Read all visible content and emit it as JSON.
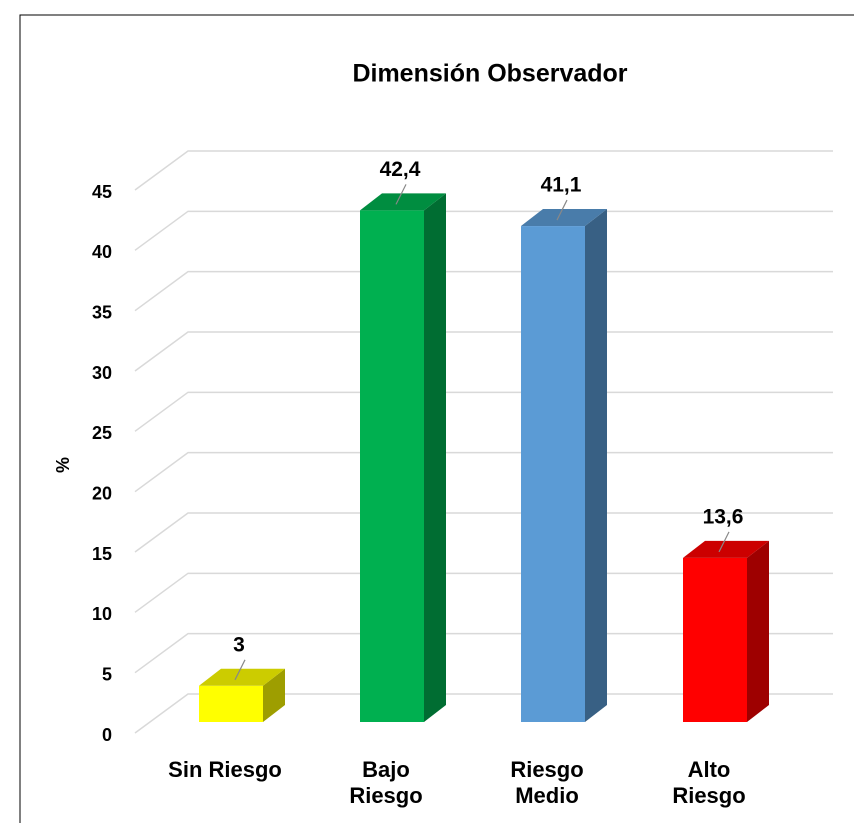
{
  "chart_data": {
    "type": "bar3d",
    "title": "Dimensión Observador",
    "y_label": "%",
    "categories": [
      "Sin Riesgo",
      "Bajo\nRiesgo",
      "Riesgo\nMedio",
      "Alto\nRiesgo"
    ],
    "values": [
      3,
      42.4,
      41.1,
      13.6
    ],
    "value_labels": [
      "3",
      "42,4",
      "41,1",
      "13,6"
    ],
    "colors": [
      "#ffff00",
      "#00b050",
      "#5b9bd5",
      "#ff0000"
    ],
    "ylim": [
      0,
      45
    ],
    "yticks": [
      0,
      5,
      10,
      15,
      20,
      25,
      30,
      35,
      40,
      45
    ],
    "grid": true
  }
}
